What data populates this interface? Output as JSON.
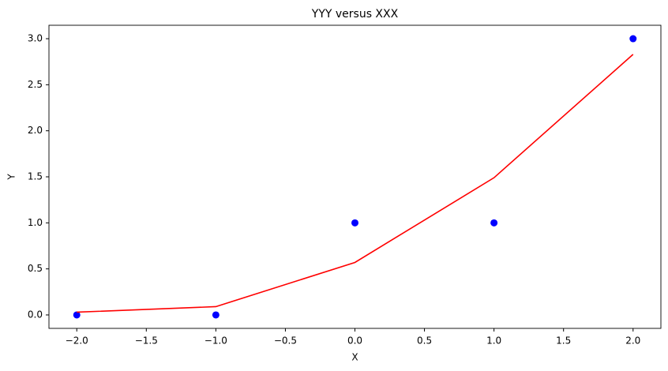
{
  "chart_data": {
    "type": "scatter",
    "title": "YYY versus XXX",
    "x_label": "X",
    "y_label": "Y",
    "xlim": [
      -2.2,
      2.2
    ],
    "ylim": [
      -0.146,
      3.146
    ],
    "xticks": [
      {
        "value": -2,
        "label": "−2.0"
      },
      {
        "value": -1.5,
        "label": "−1.5"
      },
      {
        "value": -1,
        "label": "−1.0"
      },
      {
        "value": -0.5,
        "label": "−0.5"
      },
      {
        "value": 0,
        "label": "0.0"
      },
      {
        "value": 0.5,
        "label": "0.5"
      },
      {
        "value": 1,
        "label": "1.0"
      },
      {
        "value": 1.5,
        "label": "1.5"
      },
      {
        "value": 2,
        "label": "2.0"
      }
    ],
    "yticks": [
      {
        "value": 0,
        "label": "0.0"
      },
      {
        "value": 0.5,
        "label": "0.5"
      },
      {
        "value": 1,
        "label": "1.0"
      },
      {
        "value": 1.5,
        "label": "1.5"
      },
      {
        "value": 2,
        "label": "2.0"
      },
      {
        "value": 2.5,
        "label": "2.5"
      },
      {
        "value": 3,
        "label": "3.0"
      }
    ],
    "x": [
      -2,
      -1,
      0,
      1,
      2
    ],
    "series": [
      {
        "type": "scatter",
        "color": "#0000ff",
        "values": [
          0,
          0,
          1,
          1,
          3
        ]
      },
      {
        "type": "line",
        "color": "#ff0000",
        "values": [
          0.03,
          0.09,
          0.57,
          1.49,
          2.83
        ]
      }
    ]
  }
}
